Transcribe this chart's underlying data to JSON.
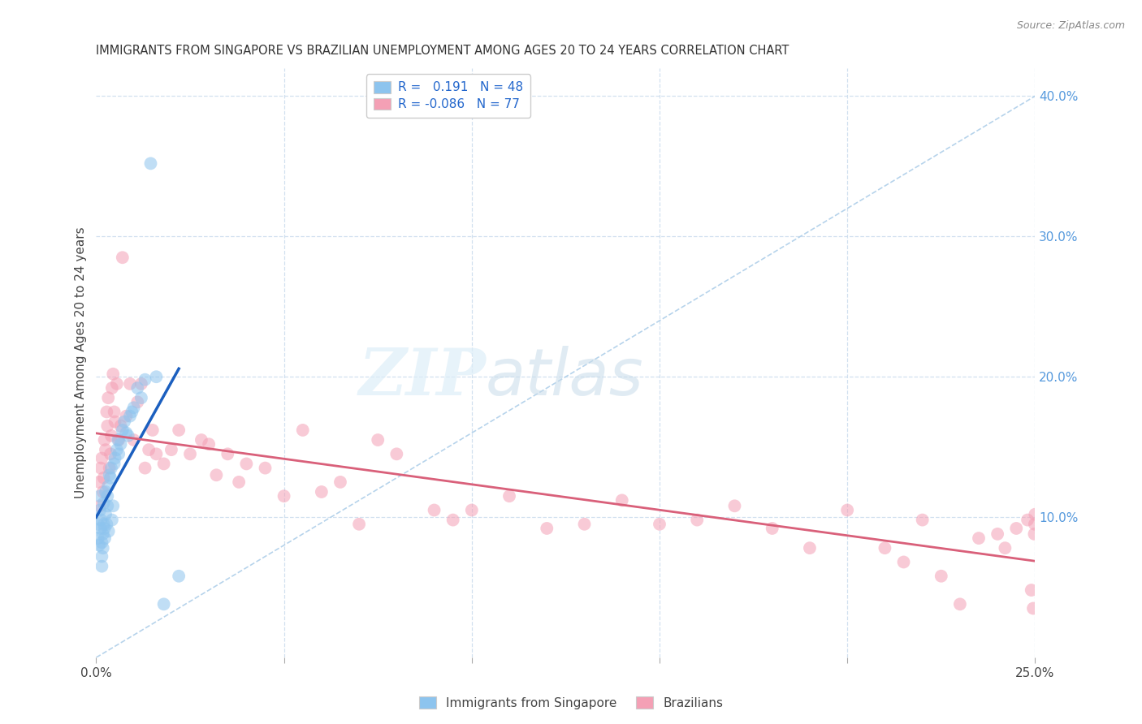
{
  "title": "IMMIGRANTS FROM SINGAPORE VS BRAZILIAN UNEMPLOYMENT AMONG AGES 20 TO 24 YEARS CORRELATION CHART",
  "source": "Source: ZipAtlas.com",
  "ylabel": "Unemployment Among Ages 20 to 24 years",
  "r_singapore": 0.191,
  "n_singapore": 48,
  "r_brazil": -0.086,
  "n_brazil": 77,
  "xlim": [
    0,
    0.25
  ],
  "ylim": [
    0,
    0.42
  ],
  "xticks": [
    0.0,
    0.05,
    0.1,
    0.15,
    0.2,
    0.25
  ],
  "xtick_labels": [
    "0.0%",
    "",
    "",
    "",
    "",
    "25.0%"
  ],
  "yticks_right": [
    0.1,
    0.2,
    0.3,
    0.4
  ],
  "ytick_labels_right": [
    "10.0%",
    "20.0%",
    "30.0%",
    "40.0%"
  ],
  "color_singapore": "#8DC4EE",
  "color_brazil": "#F4A0B5",
  "color_trendline_singapore": "#1B5FBF",
  "color_trendline_brazil": "#D9607A",
  "color_diagonal": "#AACCE8",
  "watermark_zip": "ZIP",
  "watermark_atlas": "atlas",
  "legend_label_singapore": "Immigrants from Singapore",
  "legend_label_brazil": "Brazilians",
  "singapore_x": [
    0.0005,
    0.0005,
    0.0008,
    0.001,
    0.001,
    0.0012,
    0.0013,
    0.0015,
    0.0015,
    0.0015,
    0.0018,
    0.0018,
    0.002,
    0.002,
    0.0022,
    0.0023,
    0.0025,
    0.0025,
    0.0028,
    0.003,
    0.003,
    0.0032,
    0.0033,
    0.0035,
    0.0038,
    0.004,
    0.0042,
    0.0045,
    0.0048,
    0.005,
    0.0055,
    0.0058,
    0.006,
    0.0065,
    0.007,
    0.0075,
    0.008,
    0.0085,
    0.009,
    0.0095,
    0.01,
    0.011,
    0.012,
    0.013,
    0.0145,
    0.016,
    0.018,
    0.022
  ],
  "singapore_y": [
    0.095,
    0.085,
    0.08,
    0.115,
    0.105,
    0.092,
    0.098,
    0.072,
    0.065,
    0.082,
    0.088,
    0.078,
    0.095,
    0.11,
    0.092,
    0.085,
    0.118,
    0.102,
    0.095,
    0.108,
    0.115,
    0.122,
    0.09,
    0.13,
    0.128,
    0.135,
    0.098,
    0.108,
    0.138,
    0.142,
    0.148,
    0.155,
    0.145,
    0.152,
    0.162,
    0.168,
    0.16,
    0.158,
    0.172,
    0.175,
    0.178,
    0.192,
    0.185,
    0.198,
    0.352,
    0.2,
    0.038,
    0.058
  ],
  "brazil_x": [
    0.0008,
    0.001,
    0.0012,
    0.0015,
    0.0018,
    0.002,
    0.0022,
    0.0025,
    0.0028,
    0.003,
    0.0032,
    0.0035,
    0.0038,
    0.004,
    0.0042,
    0.0045,
    0.0048,
    0.005,
    0.0055,
    0.006,
    0.0065,
    0.007,
    0.008,
    0.009,
    0.01,
    0.011,
    0.012,
    0.013,
    0.014,
    0.015,
    0.016,
    0.018,
    0.02,
    0.022,
    0.025,
    0.028,
    0.03,
    0.032,
    0.035,
    0.038,
    0.04,
    0.045,
    0.05,
    0.055,
    0.06,
    0.065,
    0.07,
    0.075,
    0.08,
    0.09,
    0.095,
    0.1,
    0.11,
    0.12,
    0.13,
    0.14,
    0.15,
    0.16,
    0.17,
    0.18,
    0.19,
    0.2,
    0.21,
    0.215,
    0.22,
    0.225,
    0.23,
    0.235,
    0.24,
    0.242,
    0.245,
    0.248,
    0.249,
    0.2495,
    0.2498,
    0.2499,
    0.25
  ],
  "brazil_y": [
    0.125,
    0.108,
    0.135,
    0.142,
    0.118,
    0.128,
    0.155,
    0.148,
    0.175,
    0.165,
    0.185,
    0.135,
    0.145,
    0.158,
    0.192,
    0.202,
    0.175,
    0.168,
    0.195,
    0.155,
    0.165,
    0.285,
    0.172,
    0.195,
    0.155,
    0.182,
    0.195,
    0.135,
    0.148,
    0.162,
    0.145,
    0.138,
    0.148,
    0.162,
    0.145,
    0.155,
    0.152,
    0.13,
    0.145,
    0.125,
    0.138,
    0.135,
    0.115,
    0.162,
    0.118,
    0.125,
    0.095,
    0.155,
    0.145,
    0.105,
    0.098,
    0.105,
    0.115,
    0.092,
    0.095,
    0.112,
    0.095,
    0.098,
    0.108,
    0.092,
    0.078,
    0.105,
    0.078,
    0.068,
    0.098,
    0.058,
    0.038,
    0.085,
    0.088,
    0.078,
    0.092,
    0.098,
    0.048,
    0.035,
    0.088,
    0.095,
    0.102
  ]
}
